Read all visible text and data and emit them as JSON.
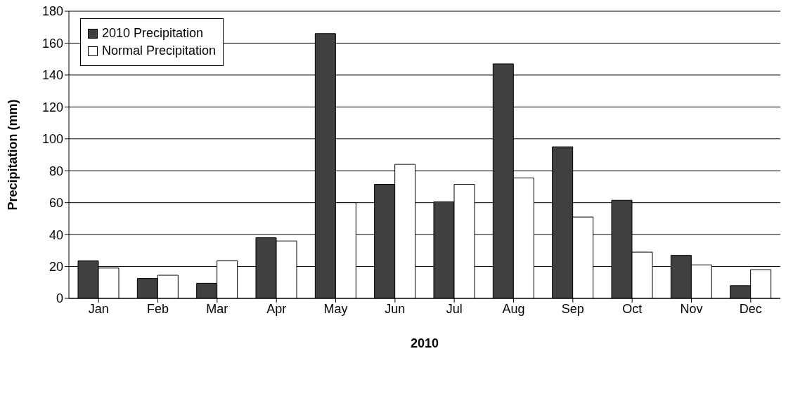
{
  "chart_data": {
    "type": "bar",
    "xlabel": "2010",
    "ylabel": "Precipitation (mm)",
    "categories": [
      "Jan",
      "Feb",
      "Mar",
      "Apr",
      "May",
      "Jun",
      "Jul",
      "Aug",
      "Sep",
      "Oct",
      "Nov",
      "Dec"
    ],
    "series": [
      {
        "name": "2010 Precipitation",
        "color": "#404040",
        "values": [
          23.5,
          12.5,
          9.5,
          38,
          166,
          71.5,
          60.5,
          147,
          95,
          61.5,
          27,
          8
        ]
      },
      {
        "name": "Normal Precipitation",
        "color": "#ffffff",
        "values": [
          19,
          14.5,
          23.5,
          36,
          60,
          84,
          71.5,
          75.5,
          51,
          29,
          21,
          18
        ]
      }
    ],
    "ylim": [
      0,
      180
    ],
    "yticks": [
      0,
      20,
      40,
      60,
      80,
      100,
      120,
      140,
      160,
      180
    ],
    "grid": "y",
    "legend": "top left"
  }
}
